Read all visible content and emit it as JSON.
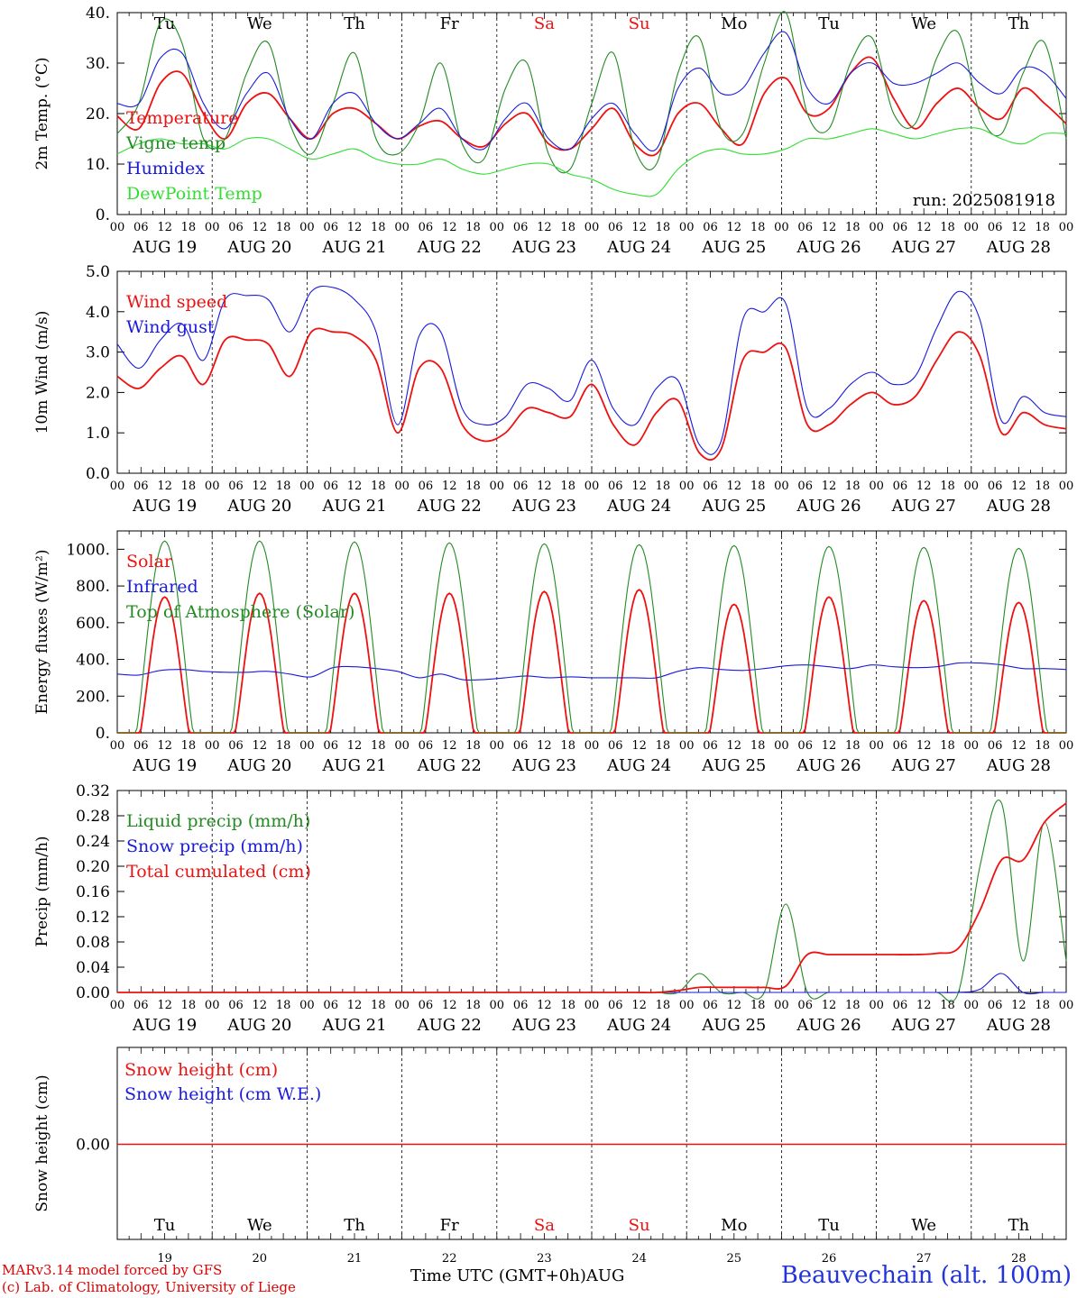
{
  "run_label": "run: 2025081918",
  "day_names": [
    "Tu",
    "We",
    "Th",
    "Fr",
    "Sa",
    "Su",
    "Mo",
    "Tu",
    "We",
    "Th"
  ],
  "weekend_flags": [
    false,
    false,
    false,
    false,
    true,
    true,
    false,
    false,
    false,
    false
  ],
  "dates": [
    "AUG 19",
    "AUG 20",
    "AUG 21",
    "AUG 22",
    "AUG 23",
    "AUG 24",
    "AUG 25",
    "AUG 26",
    "AUG 27",
    "AUG 28"
  ],
  "day_numbers": [
    "19",
    "20",
    "21",
    "22",
    "23",
    "24",
    "25",
    "26",
    "27",
    "28"
  ],
  "hour_ticks": [
    "00",
    "06",
    "12",
    "18"
  ],
  "footer": {
    "credit1": "MARv3.14 model forced by GFS",
    "credit2": "(c) Lab. of Climatology, University of Liege",
    "time_label": "Time UTC (GMT+0h)",
    "month_label": "AUG",
    "station": "Beauvechain (alt. 100m)"
  },
  "colors": {
    "red": "#ee1111",
    "green": "#228b22",
    "blue": "#1a1add",
    "lightgreen": "#33dd33"
  },
  "chart_data": [
    {
      "type": "line",
      "ylabel": "2m Temp. (°C)",
      "ylim": [
        0,
        40
      ],
      "yticks": [
        "0.",
        "10.",
        "20.",
        "30.",
        "40."
      ],
      "ytick_values": [
        0,
        10,
        20,
        30,
        40
      ],
      "legend": [
        "Temperature",
        "Vigne temp",
        "Humidex",
        "DewPoint Temp"
      ],
      "x_unit": "hours since AUG 19 00 UTC, 6-hourly",
      "series": [
        {
          "name": "Temperature",
          "color": "red",
          "values": [
            19.5,
            17,
            26,
            28,
            20,
            15,
            22,
            24,
            19,
            15,
            20,
            21,
            18,
            15,
            17.5,
            18.5,
            15,
            13.5,
            18,
            20,
            14,
            13,
            17,
            21,
            14,
            12,
            20,
            22,
            17,
            14,
            24,
            27,
            20,
            21,
            28,
            31,
            23,
            17,
            22,
            25,
            21,
            19,
            25,
            22,
            18
          ]
        },
        {
          "name": "Vigne temp",
          "color": "green",
          "values": [
            16,
            22,
            38,
            34,
            15,
            15,
            28,
            34,
            18,
            12,
            22,
            32,
            15,
            12,
            18,
            30,
            14,
            11,
            25,
            30,
            12,
            9,
            22,
            32,
            13,
            10,
            28,
            35,
            17,
            16,
            30,
            40,
            20,
            17,
            30,
            35,
            20,
            18,
            31,
            36,
            20,
            16,
            28,
            34,
            15
          ]
        },
        {
          "name": "Humidex",
          "color": "blue",
          "values": [
            22,
            22,
            31,
            32,
            22,
            17,
            24,
            28,
            19,
            15,
            22,
            24,
            18,
            15,
            18,
            21,
            15,
            13,
            19,
            22,
            15,
            13,
            19,
            22,
            16,
            13,
            25,
            29,
            24,
            25,
            32,
            36,
            25,
            22,
            28,
            30,
            26,
            26,
            28,
            30,
            26,
            24,
            29,
            28,
            23
          ]
        },
        {
          "name": "DewPoint Temp",
          "color": "lightgreen",
          "values": [
            12,
            14,
            15,
            14,
            14,
            13,
            15,
            15,
            13,
            11,
            12,
            13,
            11,
            10,
            10,
            11,
            9,
            8,
            9,
            10,
            10,
            8,
            7,
            5,
            4,
            4,
            9,
            12,
            13,
            12,
            12,
            13,
            15,
            15,
            16,
            17,
            16,
            15,
            16,
            17,
            17,
            15,
            14,
            16,
            16
          ]
        }
      ]
    },
    {
      "type": "line",
      "ylabel": "10m Wind (m/s)",
      "ylim": [
        0,
        5
      ],
      "yticks": [
        "0.0",
        "1.0",
        "2.0",
        "3.0",
        "4.0",
        "5.0"
      ],
      "ytick_values": [
        0,
        1,
        2,
        3,
        4,
        5
      ],
      "legend": [
        "Wind speed",
        "Wind gust"
      ],
      "series": [
        {
          "name": "Wind speed",
          "color": "red",
          "values": [
            2.4,
            2.1,
            2.6,
            2.9,
            2.2,
            3.3,
            3.3,
            3.2,
            2.4,
            3.5,
            3.5,
            3.4,
            2.8,
            1.0,
            2.6,
            2.6,
            1.2,
            0.8,
            1.0,
            1.6,
            1.5,
            1.4,
            2.2,
            1.2,
            0.7,
            1.5,
            1.8,
            0.5,
            0.6,
            2.8,
            3.0,
            3.1,
            1.2,
            1.2,
            1.7,
            2.0,
            1.7,
            1.9,
            2.8,
            3.5,
            2.9,
            1.0,
            1.5,
            1.2,
            1.1
          ]
        },
        {
          "name": "Wind gust",
          "color": "blue",
          "values": [
            3.2,
            2.6,
            3.3,
            3.7,
            2.8,
            4.3,
            4.4,
            4.3,
            3.5,
            4.5,
            4.6,
            4.3,
            3.5,
            1.2,
            3.4,
            3.5,
            1.6,
            1.2,
            1.4,
            2.2,
            2.1,
            1.8,
            2.8,
            1.6,
            1.2,
            2.1,
            2.3,
            0.7,
            0.8,
            3.8,
            4.0,
            4.2,
            1.6,
            1.6,
            2.2,
            2.5,
            2.2,
            2.4,
            3.6,
            4.5,
            3.8,
            1.3,
            1.9,
            1.5,
            1.4
          ]
        }
      ]
    },
    {
      "type": "line",
      "ylabel": "Energy fluxes (W/m²)",
      "ylim": [
        0,
        1100
      ],
      "yticks": [
        "0.",
        "200.",
        "400.",
        "600.",
        "800.",
        "1000."
      ],
      "ytick_values": [
        0,
        200,
        400,
        600,
        800,
        1000
      ],
      "legend": [
        "Solar",
        "Infrared",
        "Top of Atmosphere (Solar)"
      ],
      "series": [
        {
          "name": "Solar",
          "color": "red",
          "peaks": [
            740,
            760,
            760,
            760,
            770,
            780,
            700,
            740,
            720,
            710
          ]
        },
        {
          "name": "Infrared",
          "color": "blue",
          "values": [
            320,
            315,
            340,
            345,
            335,
            330,
            330,
            335,
            320,
            305,
            355,
            360,
            350,
            335,
            300,
            320,
            290,
            290,
            300,
            310,
            300,
            305,
            300,
            300,
            300,
            300,
            335,
            355,
            345,
            340,
            350,
            365,
            370,
            360,
            350,
            370,
            360,
            355,
            360,
            380,
            380,
            370,
            350,
            350,
            345
          ]
        },
        {
          "name": "Top of Atmosphere (Solar)",
          "color": "green",
          "peaks": [
            1045,
            1045,
            1040,
            1035,
            1030,
            1025,
            1020,
            1015,
            1010,
            1005
          ]
        }
      ]
    },
    {
      "type": "line",
      "ylabel": "Precip (mm/h)",
      "ylim": [
        0,
        0.32
      ],
      "yticks": [
        "0.00",
        "0.04",
        "0.08",
        "0.12",
        "0.16",
        "0.20",
        "0.24",
        "0.28",
        "0.32"
      ],
      "ytick_values": [
        0,
        0.04,
        0.08,
        0.12,
        0.16,
        0.2,
        0.24,
        0.28,
        0.32
      ],
      "legend": [
        "Liquid precip (mm/h)",
        "Snow precip (mm/h)",
        "Total cumulated (cm)"
      ],
      "series": [
        {
          "name": "Liquid precip (mm/h)",
          "color": "green",
          "values": [
            0,
            0,
            0,
            0,
            0,
            0,
            0,
            0,
            0,
            0,
            0,
            0,
            0,
            0,
            0,
            0,
            0,
            0,
            0,
            0,
            0,
            0,
            0,
            0,
            0,
            0,
            0,
            0.03,
            0,
            0,
            0,
            0.14,
            0,
            0,
            0,
            0,
            0,
            0,
            0,
            0,
            0.2,
            0.3,
            0.05,
            0.27,
            0.05
          ]
        },
        {
          "name": "Snow precip (mm/h)",
          "color": "blue",
          "values": [
            0,
            0,
            0,
            0,
            0,
            0,
            0,
            0,
            0,
            0,
            0,
            0,
            0,
            0,
            0,
            0,
            0,
            0,
            0,
            0,
            0,
            0,
            0,
            0,
            0,
            0,
            0,
            0,
            0,
            0,
            0,
            0,
            0,
            0,
            0,
            0,
            0,
            0,
            0,
            0,
            0.005,
            0.03,
            0,
            0,
            0
          ]
        },
        {
          "name": "Total cumulated (cm)",
          "color": "red",
          "values": [
            0,
            0,
            0,
            0,
            0,
            0,
            0,
            0,
            0,
            0,
            0,
            0,
            0,
            0,
            0,
            0,
            0,
            0,
            0,
            0,
            0,
            0,
            0,
            0,
            0,
            0,
            0.003,
            0.008,
            0.008,
            0.008,
            0.008,
            0.01,
            0.06,
            0.06,
            0.06,
            0.06,
            0.06,
            0.06,
            0.062,
            0.07,
            0.13,
            0.21,
            0.21,
            0.27,
            0.3
          ]
        }
      ]
    },
    {
      "type": "line",
      "ylabel": "Snow height (cm)",
      "yticks": [
        "0.00"
      ],
      "legend": [
        "Snow height (cm)",
        "Snow height (cm W.E.)"
      ],
      "series": [
        {
          "name": "Snow height (cm)",
          "color": "red",
          "values": [
            0,
            0
          ]
        },
        {
          "name": "Snow height (cm W.E.)",
          "color": "blue",
          "values": [
            0,
            0
          ]
        }
      ]
    }
  ]
}
